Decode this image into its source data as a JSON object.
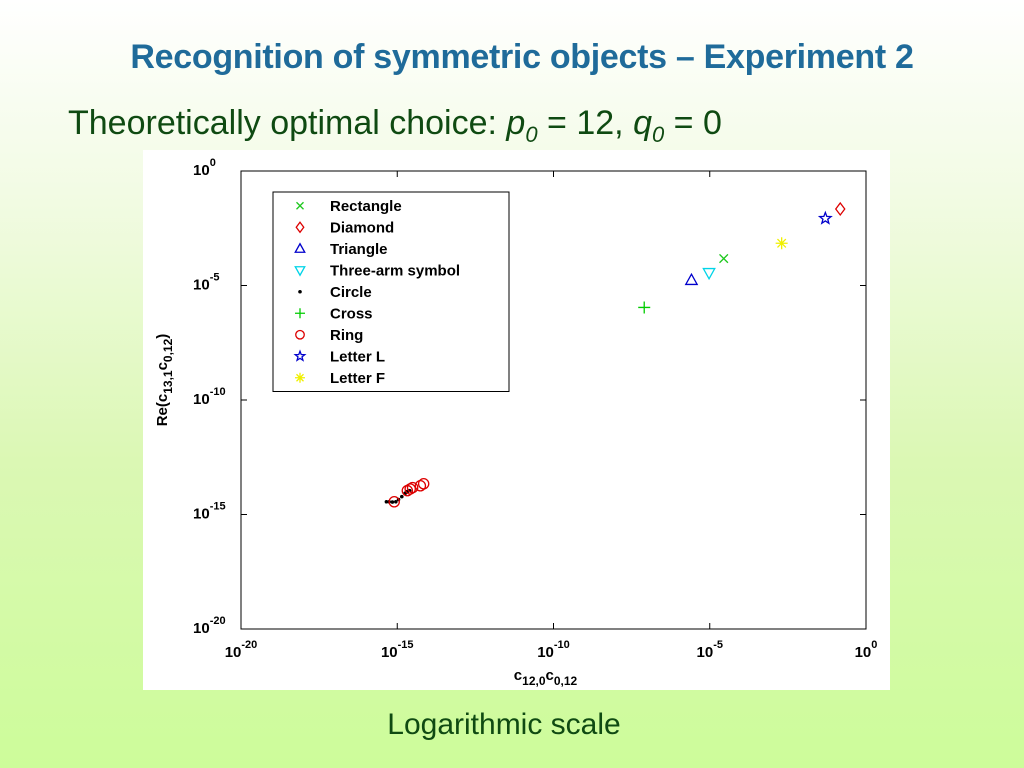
{
  "slide": {
    "title": "Recognition of symmetric objects – Experiment 2",
    "subtitle": {
      "lead": "Theoretically optimal choice: ",
      "p_var": "p",
      "p_sub": "0",
      "p_eq": " = 12, ",
      "q_var": "q",
      "q_sub": "0",
      "q_eq": " = 0"
    },
    "caption": "Logarithmic scale"
  },
  "chart_data": {
    "type": "scatter",
    "x_scale": "log",
    "y_scale": "log",
    "xlim": [
      1e-20,
      1
    ],
    "ylim": [
      1e-20,
      1
    ],
    "xlabel": {
      "base": "c",
      "sub1": "12,0",
      "mid": "c",
      "sub2": "0,12"
    },
    "ylabel": {
      "pre": "Re(c",
      "sub1": "13,1",
      "mid": "c",
      "sub2": "0,12",
      "post": ")"
    },
    "x_ticks": [
      {
        "value": 1e-20,
        "base": "10",
        "exp": "-20"
      },
      {
        "value": 1e-15,
        "base": "10",
        "exp": "-15"
      },
      {
        "value": 1e-10,
        "base": "10",
        "exp": "-10"
      },
      {
        "value": 1e-05,
        "base": "10",
        "exp": "-5"
      },
      {
        "value": 1,
        "base": "10",
        "exp": "0"
      }
    ],
    "y_ticks": [
      {
        "value": 1,
        "base": "10",
        "exp": "0"
      },
      {
        "value": 1e-05,
        "base": "10",
        "exp": "-5"
      },
      {
        "value": 1e-10,
        "base": "10",
        "exp": "-10"
      },
      {
        "value": 1e-15,
        "base": "10",
        "exp": "-15"
      },
      {
        "value": 1e-20,
        "base": "10",
        "exp": "-20"
      }
    ],
    "grid": false,
    "legend_position": "top-left",
    "series": [
      {
        "name": "Rectangle",
        "marker": "x",
        "color": "#1ec81e",
        "points": [
          [
            2.8e-05,
            0.00015
          ]
        ]
      },
      {
        "name": "Diamond",
        "marker": "diamond",
        "color": "#dd0000",
        "points": [
          [
            0.15,
            0.022
          ]
        ]
      },
      {
        "name": "Triangle",
        "marker": "triangle-up",
        "color": "#0000cc",
        "points": [
          [
            2.6e-06,
            1.7e-05
          ]
        ]
      },
      {
        "name": "Three-arm symbol",
        "marker": "triangle-down",
        "color": "#00d4e8",
        "points": [
          [
            9.5e-06,
            3.6e-05
          ]
        ]
      },
      {
        "name": "Circle",
        "marker": "dot",
        "color": "#000000",
        "points": [
          [
            4.5e-16,
            3.6e-15
          ],
          [
            5.5e-16,
            3.6e-15
          ],
          [
            7e-16,
            3.5e-15
          ],
          [
            9e-16,
            3.6e-15
          ],
          [
            1.1e-15,
            4.5e-15
          ],
          [
            1.4e-15,
            6e-15
          ],
          [
            1.8e-15,
            8.5e-15
          ],
          [
            2.1e-15,
            1e-14
          ],
          [
            2.5e-15,
            1.1e-14
          ]
        ]
      },
      {
        "name": "Cross",
        "marker": "plus",
        "color": "#00cc00",
        "points": [
          [
            8e-08,
            1.1e-06
          ]
        ]
      },
      {
        "name": "Ring",
        "marker": "circle",
        "color": "#dd0000",
        "points": [
          [
            8e-16,
            3.6e-15
          ],
          [
            2.1e-15,
            1.1e-14
          ],
          [
            2.6e-15,
            1.3e-14
          ],
          [
            3.1e-15,
            1.5e-14
          ],
          [
            5.5e-15,
            1.8e-14
          ],
          [
            7e-15,
            2.2e-14
          ]
        ]
      },
      {
        "name": "Letter L",
        "marker": "star",
        "color": "#0000cc",
        "points": [
          [
            0.05,
            0.0085
          ]
        ]
      },
      {
        "name": "Letter F",
        "marker": "asterisk",
        "color": "#f0f000",
        "points": [
          [
            0.002,
            0.0007
          ]
        ]
      }
    ]
  }
}
